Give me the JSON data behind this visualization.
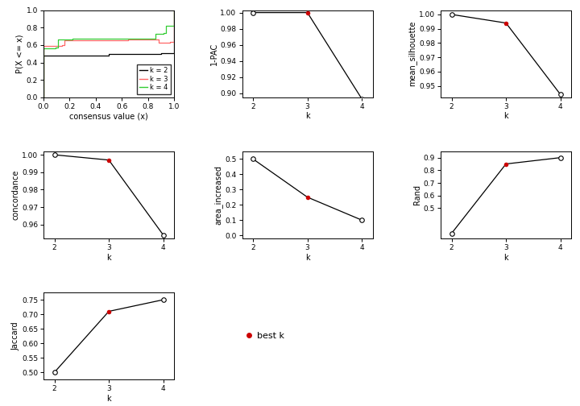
{
  "ecdf": {
    "k2_x": [
      0.0,
      0.0,
      0.05,
      0.5,
      0.9,
      0.95,
      1.0,
      1.0
    ],
    "k2_y": [
      0.0,
      0.475,
      0.48,
      0.5,
      0.505,
      0.51,
      0.515,
      1.0
    ],
    "k3_x": [
      0.0,
      0.0,
      0.14,
      0.16,
      0.63,
      0.65,
      0.87,
      0.88,
      0.96,
      0.97,
      1.0,
      1.0
    ],
    "k3_y": [
      0.0,
      0.585,
      0.595,
      0.655,
      0.655,
      0.66,
      0.66,
      0.625,
      0.625,
      0.635,
      0.645,
      1.0
    ],
    "k4_x": [
      0.0,
      0.0,
      0.09,
      0.11,
      0.18,
      0.22,
      0.84,
      0.86,
      0.92,
      0.94,
      1.0,
      1.0
    ],
    "k4_y": [
      0.0,
      0.565,
      0.575,
      0.665,
      0.665,
      0.675,
      0.675,
      0.73,
      0.74,
      0.825,
      0.835,
      1.0
    ],
    "color_k2": "#000000",
    "color_k3": "#FF6666",
    "color_k4": "#33CC33",
    "xlabel": "consensus value (x)",
    "ylabel": "P(X <= x)",
    "xlim": [
      0.0,
      1.0
    ],
    "ylim": [
      0.0,
      1.0
    ],
    "xticks": [
      0.0,
      0.2,
      0.4,
      0.6,
      0.8,
      1.0
    ],
    "yticks": [
      0.0,
      0.2,
      0.4,
      0.6,
      0.8,
      1.0
    ]
  },
  "pac": {
    "k": [
      2,
      3,
      4
    ],
    "values": [
      1.0,
      1.0,
      0.893
    ],
    "best_k": 3,
    "ylabel": "1-PAC",
    "ylim": [
      0.895,
      1.003
    ],
    "yticks": [
      0.9,
      0.92,
      0.94,
      0.96,
      0.98,
      1.0
    ]
  },
  "silhouette": {
    "k": [
      2,
      3,
      4
    ],
    "values": [
      1.0,
      0.994,
      0.944
    ],
    "best_k": 3,
    "ylabel": "mean_silhouette",
    "ylim": [
      0.942,
      1.003
    ],
    "yticks": [
      0.95,
      0.96,
      0.97,
      0.98,
      0.99,
      1.0
    ]
  },
  "concordance": {
    "k": [
      2,
      3,
      4
    ],
    "values": [
      1.0,
      0.997,
      0.954
    ],
    "best_k": 3,
    "ylabel": "concordance",
    "ylim": [
      0.952,
      1.002
    ],
    "yticks": [
      0.96,
      0.97,
      0.98,
      0.99,
      1.0
    ]
  },
  "area_increased": {
    "k": [
      2,
      3,
      4
    ],
    "values": [
      0.5,
      0.25,
      0.1
    ],
    "best_k": 3,
    "ylabel": "area_increased",
    "ylim": [
      -0.02,
      0.55
    ],
    "yticks": [
      0.0,
      0.1,
      0.2,
      0.3,
      0.4,
      0.5
    ]
  },
  "rand": {
    "k": [
      2,
      3,
      4
    ],
    "values": [
      0.3,
      0.85,
      0.9
    ],
    "best_k": 3,
    "ylabel": "Rand",
    "ylim": [
      0.26,
      0.95
    ],
    "yticks": [
      0.5,
      0.6,
      0.7,
      0.8,
      0.9
    ]
  },
  "jaccard": {
    "k": [
      2,
      3,
      4
    ],
    "values": [
      0.5,
      0.71,
      0.75
    ],
    "best_k": 3,
    "ylabel": "Jaccard",
    "ylim": [
      0.475,
      0.775
    ],
    "yticks": [
      0.5,
      0.55,
      0.6,
      0.65,
      0.7,
      0.75
    ]
  },
  "xlabel": "k",
  "xlim": [
    1.8,
    4.2
  ],
  "xticks": [
    2,
    3,
    4
  ],
  "best_k_color": "#CC0000",
  "line_color": "#000000",
  "bg_color": "#FFFFFF",
  "font_size_axis_label": 7,
  "font_size_tick": 6.5,
  "marker_size": 4,
  "line_width": 0.9
}
